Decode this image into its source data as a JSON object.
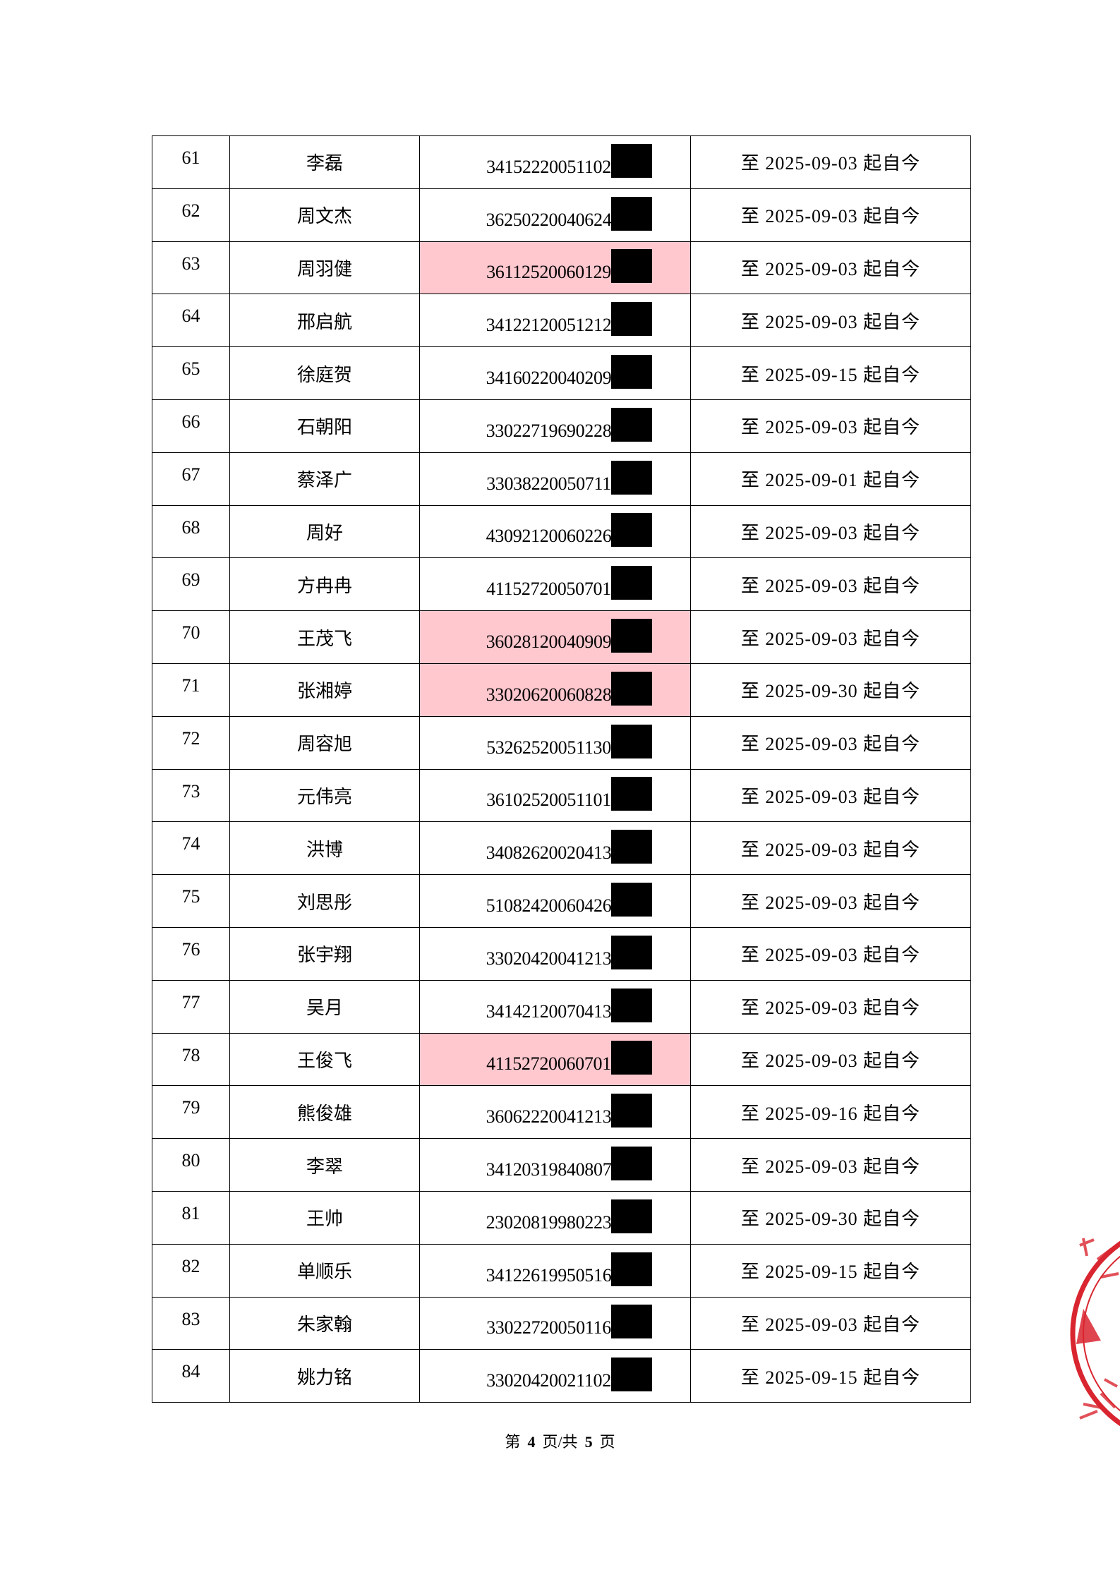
{
  "rows": [
    {
      "no": "61",
      "name": "李磊",
      "id": "34152220051102",
      "date": "至 2025-09-03 起自今",
      "highlight": false
    },
    {
      "no": "62",
      "name": "周文杰",
      "id": "36250220040624",
      "date": "至 2025-09-03 起自今",
      "highlight": false
    },
    {
      "no": "63",
      "name": "周羽健",
      "id": "36112520060129",
      "date": "至 2025-09-03 起自今",
      "highlight": true
    },
    {
      "no": "64",
      "name": "邢启航",
      "id": "34122120051212",
      "date": "至 2025-09-03 起自今",
      "highlight": false
    },
    {
      "no": "65",
      "name": "徐庭贺",
      "id": "34160220040209",
      "date": "至 2025-09-15 起自今",
      "highlight": false
    },
    {
      "no": "66",
      "name": "石朝阳",
      "id": "33022719690228",
      "date": "至 2025-09-03 起自今",
      "highlight": false
    },
    {
      "no": "67",
      "name": "蔡泽广",
      "id": "33038220050711",
      "date": "至 2025-09-01 起自今",
      "highlight": false
    },
    {
      "no": "68",
      "name": "周好",
      "id": "43092120060226",
      "date": "至 2025-09-03 起自今",
      "highlight": false
    },
    {
      "no": "69",
      "name": "方冉冉",
      "id": "41152720050701",
      "date": "至 2025-09-03 起自今",
      "highlight": false
    },
    {
      "no": "70",
      "name": "王茂飞",
      "id": "36028120040909",
      "date": "至 2025-09-03 起自今",
      "highlight": true
    },
    {
      "no": "71",
      "name": "张湘婷",
      "id": "33020620060828",
      "date": "至 2025-09-30 起自今",
      "highlight": true
    },
    {
      "no": "72",
      "name": "周容旭",
      "id": "53262520051130",
      "date": "至 2025-09-03 起自今",
      "highlight": false
    },
    {
      "no": "73",
      "name": "元伟亮",
      "id": "36102520051101",
      "date": "至 2025-09-03 起自今",
      "highlight": false
    },
    {
      "no": "74",
      "name": "洪博",
      "id": "34082620020413",
      "date": "至 2025-09-03 起自今",
      "highlight": false
    },
    {
      "no": "75",
      "name": "刘思彤",
      "id": "51082420060426",
      "date": "至 2025-09-03 起自今",
      "highlight": false
    },
    {
      "no": "76",
      "name": "张宇翔",
      "id": "33020420041213",
      "date": "至 2025-09-03 起自今",
      "highlight": false
    },
    {
      "no": "77",
      "name": "吴月",
      "id": "34142120070413",
      "date": "至 2025-09-03 起自今",
      "highlight": false
    },
    {
      "no": "78",
      "name": "王俊飞",
      "id": "41152720060701",
      "date": "至 2025-09-03 起自今",
      "highlight": true
    },
    {
      "no": "79",
      "name": "熊俊雄",
      "id": "36062220041213",
      "date": "至 2025-09-16 起自今",
      "highlight": false
    },
    {
      "no": "80",
      "name": "李翠",
      "id": "34120319840807",
      "date": "至 2025-09-03 起自今",
      "highlight": false
    },
    {
      "no": "81",
      "name": "王帅",
      "id": "23020819980223",
      "date": "至 2025-09-30 起自今",
      "highlight": false
    },
    {
      "no": "82",
      "name": "单顺乐",
      "id": "34122619950516",
      "date": "至 2025-09-15 起自今",
      "highlight": false
    },
    {
      "no": "83",
      "name": "朱家翰",
      "id": "33022720050116",
      "date": "至 2025-09-03 起自今",
      "highlight": false
    },
    {
      "no": "84",
      "name": "姚力铭",
      "id": "33020420021102",
      "date": "至 2025-09-15 起自今",
      "highlight": false
    }
  ],
  "footer": {
    "prefix": "第",
    "page": "4",
    "middle": "页/共",
    "total": "5",
    "suffix": "页"
  },
  "colors": {
    "highlight": "#ffc7ce",
    "stamp": "#d9252f",
    "redaction": "#000000"
  }
}
